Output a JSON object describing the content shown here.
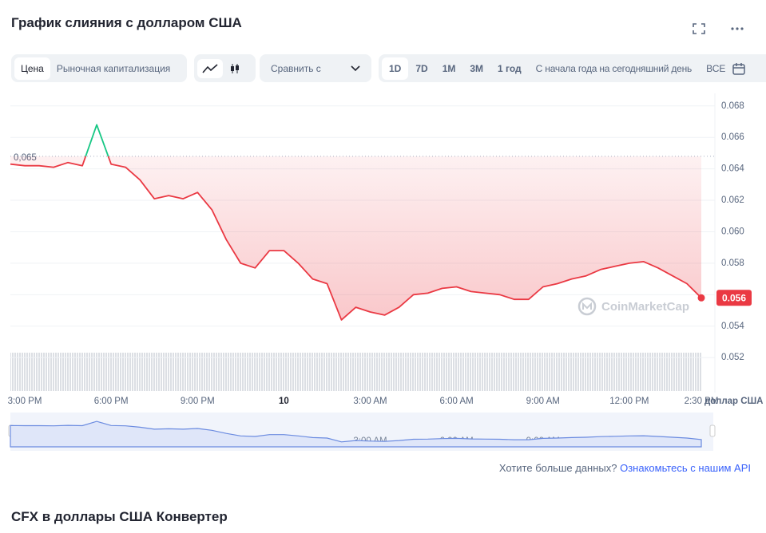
{
  "header": {
    "title": "График слияния с долларом США"
  },
  "toolbar": {
    "tabs": [
      "Цена",
      "Рыночная капитализация"
    ],
    "compare": "Сравнить с",
    "ranges": [
      "1D",
      "7D",
      "1M",
      "3M",
      "1 год",
      "С начала года на сегодняшний день",
      "ВСЕ"
    ]
  },
  "chart_data": {
    "type": "line",
    "categories": [
      null,
      "3:00 PM",
      null,
      null,
      null,
      null,
      null,
      "6:00 PM",
      null,
      null,
      null,
      null,
      null,
      "9:00 PM",
      null,
      null,
      null,
      null,
      null,
      "10",
      null,
      null,
      null,
      null,
      null,
      "3:00 AM",
      null,
      null,
      null,
      null,
      null,
      "6:00 AM",
      null,
      null,
      null,
      null,
      null,
      "9:00 AM",
      null,
      null,
      null,
      null,
      null,
      "12:00 PM",
      null,
      null,
      null,
      null,
      "2:30 PM"
    ],
    "series": [
      {
        "values": [
          0.0643,
          0.0642,
          0.0642,
          0.0641,
          0.0644,
          0.0642,
          0.0668,
          0.0643,
          0.0641,
          0.0633,
          0.0621,
          0.0623,
          0.0621,
          0.0625,
          0.0614,
          0.0595,
          0.058,
          0.0577,
          0.0588,
          0.0588,
          0.058,
          0.057,
          0.0567,
          0.0544,
          0.0552,
          0.0549,
          0.0547,
          0.0552,
          0.056,
          0.0561,
          0.0564,
          0.0565,
          0.0562,
          0.0561,
          0.056,
          0.0557,
          0.0557,
          0.0565,
          0.0567,
          0.057,
          0.0572,
          0.0576,
          0.0578,
          0.058,
          0.0581,
          0.0577,
          0.0572,
          0.0567,
          0.0558
        ]
      }
    ],
    "up_color": "#16c784",
    "down_color": "#ea3943",
    "reference": {
      "value": 0.0648,
      "label": "0,065"
    },
    "current_price": {
      "value": 0.0558,
      "label": "0.056"
    },
    "ylim": [
      0.0514,
      0.0688
    ],
    "yticks": [
      0.052,
      0.054,
      0.056,
      0.058,
      {
        "value": 0.06,
        "label": "0.060"
      },
      0.062,
      0.064,
      0.066,
      0.068
    ],
    "y_label": "доллар США",
    "watermark": "CoinMarketCap",
    "grid": true
  },
  "footer": {
    "question": "Хотите больше данных?",
    "link": "Ознакомьтесь с нашим API"
  },
  "next_section": {
    "title": "CFX в доллары США Конвертер"
  }
}
